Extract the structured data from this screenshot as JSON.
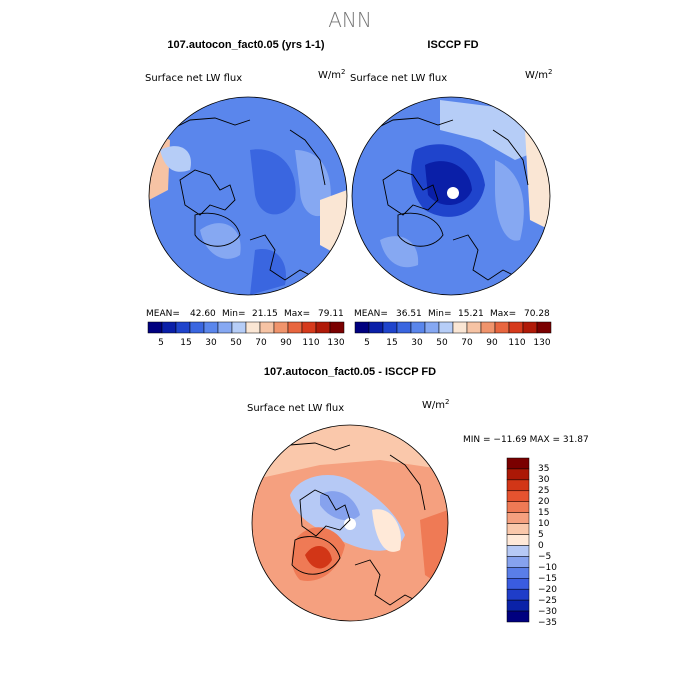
{
  "figure": {
    "title": "ANN",
    "colors": {
      "abs_scale": [
        "#00007f",
        "#0a1fa8",
        "#1f44cc",
        "#3a66e0",
        "#5a86ec",
        "#86a8f2",
        "#b6cdf7",
        "#fae6d4",
        "#f6c3a4",
        "#f0946c",
        "#e8663f",
        "#d63a1c",
        "#b01a08",
        "#7a0000"
      ],
      "diff_scale": [
        "#00007f",
        "#0a22a8",
        "#1f3dc9",
        "#3a5ce0",
        "#5a7ee8",
        "#86a2ee",
        "#b6c9f5",
        "#ffe9d8",
        "#fac8ab",
        "#f5a07f",
        "#ef7a55",
        "#e6532f",
        "#d23617",
        "#ab1806",
        "#7a0000"
      ]
    },
    "land_color": "#000000"
  },
  "chart_data": [
    {
      "type": "heatmap",
      "projection": "north-polar-stereographic",
      "header": "107.autocon_fact0.05 (yrs 1-1)",
      "variable": "Surface net LW flux",
      "units": "W/m",
      "units_exp": "2",
      "stats": {
        "mean_label": "MEAN=",
        "mean": "42.60",
        "min_label": "Min=",
        "min": "21.15",
        "max_label": "Max=",
        "max": "79.11"
      },
      "colorbar_ticks": [
        "5",
        "15",
        "30",
        "50",
        "70",
        "90",
        "110",
        "130"
      ],
      "dominant_range": [
        30,
        50
      ]
    },
    {
      "type": "heatmap",
      "projection": "north-polar-stereographic",
      "header": "ISCCP FD",
      "variable": "Surface net LW flux",
      "units": "W/m",
      "units_exp": "2",
      "stats": {
        "mean_label": "MEAN=",
        "mean": "36.51",
        "min_label": "Min=",
        "min": "15.21",
        "max_label": "Max=",
        "max": "70.28"
      },
      "colorbar_ticks": [
        "5",
        "15",
        "30",
        "50",
        "70",
        "90",
        "110",
        "130"
      ],
      "dominant_range": [
        15,
        50
      ]
    },
    {
      "type": "heatmap",
      "projection": "north-polar-stereographic",
      "header": "107.autocon_fact0.05 - ISCCP FD",
      "variable": "Surface net LW flux",
      "units": "W/m",
      "units_exp": "2",
      "stats_text": "MIN = −11.69 MAX =  31.87",
      "colorbar_ticks": [
        "35",
        "30",
        "25",
        "20",
        "15",
        "10",
        "5",
        "0",
        "−5",
        "−10",
        "−15",
        "−20",
        "−25",
        "−30",
        "−35"
      ],
      "dominant_range": [
        0,
        15
      ]
    }
  ]
}
